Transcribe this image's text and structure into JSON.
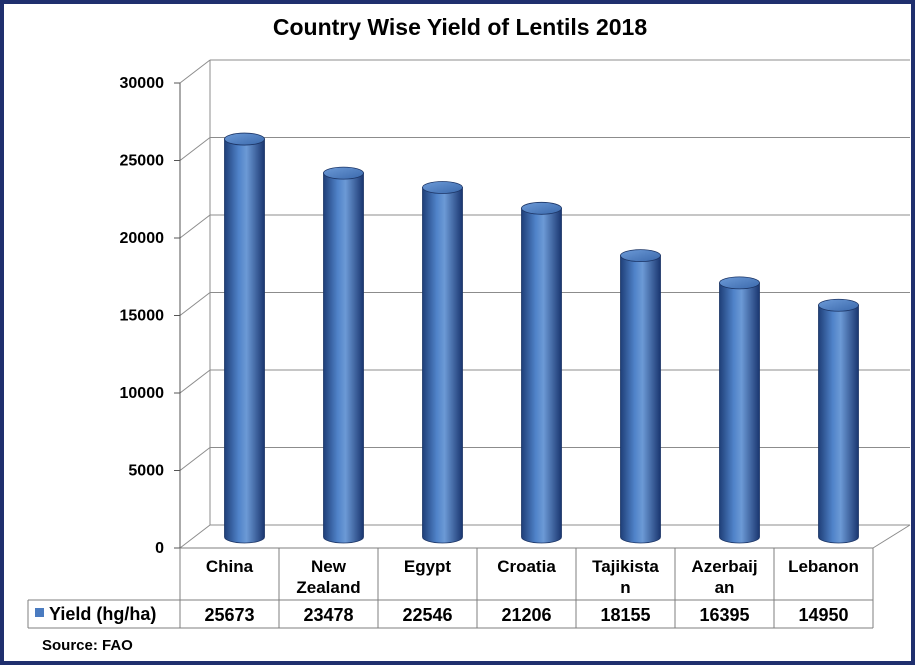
{
  "chart_data": {
    "type": "bar",
    "title": "Country Wise Yield of Lentils 2018",
    "categories": [
      [
        "China"
      ],
      [
        "New",
        "Zealand"
      ],
      [
        "Egypt"
      ],
      [
        "Croatia"
      ],
      [
        "Tajikista",
        "n"
      ],
      [
        "Azerbaij",
        "an"
      ],
      [
        "Lebanon"
      ]
    ],
    "series": [
      {
        "name": "Yield (hg/ha)",
        "values": [
          25673,
          23478,
          22546,
          21206,
          18155,
          16395,
          14950
        ],
        "color": "#4a7bc0"
      }
    ],
    "value_labels": [
      "25673",
      "23478",
      "22546",
      "21206",
      "18155",
      "16395",
      "14950"
    ],
    "ylim": [
      0,
      30000
    ],
    "yticks": [
      "0",
      "5000",
      "10000",
      "15000",
      "20000",
      "25000",
      "30000"
    ],
    "grid": true,
    "legend": "data-table",
    "bar_style": "3d-cylinder"
  },
  "source_note": "Source: FAO",
  "colors": {
    "border": "#1f2f6e",
    "bar": "#4a7bc0",
    "bar_dark": "#1f3f78",
    "grid": "#8c8c8c"
  }
}
